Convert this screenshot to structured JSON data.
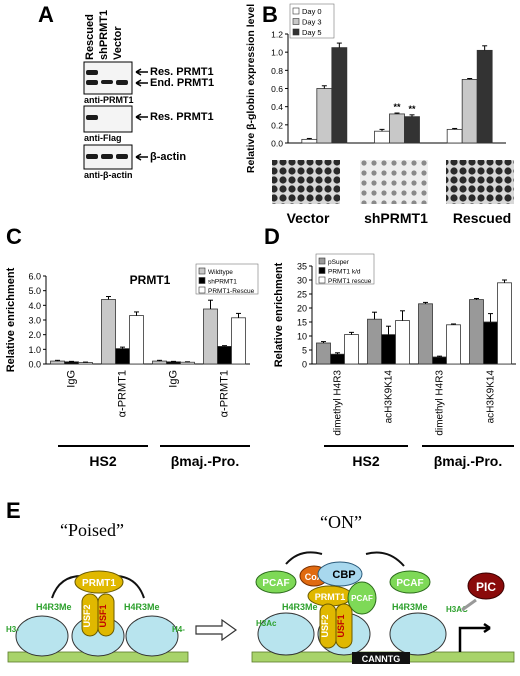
{
  "panels": {
    "A": {
      "label": "A",
      "lanes": [
        "Rescued",
        "shPRMT1",
        "Vector"
      ],
      "blot1": {
        "right_labels": [
          "Res. PRMT1",
          "End. PRMT1"
        ],
        "antibody": "anti-PRMT1"
      },
      "blot2": {
        "right_labels": [
          "Res. PRMT1"
        ],
        "antibody": "anti-Flag"
      },
      "blot3": {
        "right_labels": [
          "β-actin"
        ],
        "antibody": "anti-β-actin"
      }
    },
    "B": {
      "label": "B",
      "ylabel": "Relative β-globin expression level",
      "annotations": [
        "**",
        "**"
      ],
      "group_labels": [
        "Vector",
        "shPRMT1",
        "Rescued"
      ]
    },
    "C": {
      "label": "C",
      "title": "PRMT1",
      "ylabel": "Relative enrichment",
      "bracket_labels": [
        "HS2",
        "βmaj.-Pro."
      ]
    },
    "D": {
      "label": "D",
      "ylabel": "Relative enrichment",
      "bracket_labels": [
        "HS2",
        "βmaj.-Pro."
      ]
    },
    "E": {
      "label": "E",
      "poised_title": "“Poised”",
      "on_title": "“ON”",
      "labels": {
        "prmt1": "PRMT1",
        "usf2": "USF2",
        "usf1": "USF1",
        "h4r3me": "H4R3Me",
        "h3": "H3-",
        "h4ac_left": "H4-",
        "pcaf": "PCAF",
        "coa": "CoA",
        "cbp": "CBP",
        "h3ac": "H3Ac",
        "h2ac": "H3AC",
        "pic": "PIC",
        "canntg": "CANNTG"
      }
    }
  },
  "chart_data": [
    {
      "type": "bar",
      "panel": "B",
      "categories": [
        "Vector",
        "shPRMT1",
        "Rescued"
      ],
      "series": [
        {
          "name": "Day 0",
          "values": [
            0.04,
            0.13,
            0.15
          ],
          "color": "#ffffff"
        },
        {
          "name": "Day 3",
          "values": [
            0.6,
            0.32,
            0.7
          ],
          "color": "#c8c8c8"
        },
        {
          "name": "Day 5",
          "values": [
            1.05,
            0.29,
            1.02
          ],
          "color": "#333333"
        }
      ],
      "errors": [
        [
          0.01,
          0.02,
          0.01
        ],
        [
          0.03,
          0.01,
          0.01
        ],
        [
          0.05,
          0.02,
          0.05
        ]
      ],
      "ylabel": "Relative β-globin expression level",
      "ylim": [
        0,
        1.2
      ],
      "yticks": [
        "0.0",
        "0.2",
        "0.4",
        "0.6",
        "0.8",
        "1.0",
        "1.2"
      ],
      "legend": "top-left"
    },
    {
      "type": "bar",
      "panel": "C",
      "title": "PRMT1",
      "categories": [
        "IgG",
        "α-PRMT1",
        "IgG",
        "α-PRMT1"
      ],
      "series": [
        {
          "name": "Wildtype",
          "values": [
            0.2,
            4.4,
            0.2,
            3.75
          ],
          "color": "#c8c8c8"
        },
        {
          "name": "shPRMT1",
          "values": [
            0.15,
            1.05,
            0.15,
            1.2
          ],
          "color": "#000000"
        },
        {
          "name": "PRMT1-Rescue",
          "values": [
            0.1,
            3.3,
            0.12,
            3.15
          ],
          "color": "#ffffff"
        }
      ],
      "errors": [
        [
          0.05,
          0.2,
          0.05,
          0.6
        ],
        [
          0.03,
          0.1,
          0.03,
          0.05
        ],
        [
          0.03,
          0.25,
          0.03,
          0.3
        ]
      ],
      "ylabel": "Relative enrichment",
      "ylim": [
        0,
        6
      ],
      "yticks": [
        "0.0",
        "1.0",
        "2.0",
        "3.0",
        "4.0",
        "5.0",
        "6.0"
      ],
      "legend": "top-right"
    },
    {
      "type": "bar",
      "panel": "D",
      "categories": [
        "dimethyl H4R3",
        "acH3K9K14",
        "dimethyl H4R3",
        "acH3K9K14"
      ],
      "series": [
        {
          "name": "pSuper",
          "values": [
            7.5,
            16,
            21.5,
            23
          ],
          "color": "#999999"
        },
        {
          "name": "PRMT1 k/d",
          "values": [
            3.5,
            10.5,
            2.5,
            15
          ],
          "color": "#000000"
        },
        {
          "name": "PRMT1 rescue",
          "values": [
            10.5,
            15.5,
            14,
            29
          ],
          "color": "#ffffff"
        }
      ],
      "errors": [
        [
          0.5,
          2.5,
          0.5,
          0.4
        ],
        [
          0.5,
          3,
          0.3,
          3
        ],
        [
          0.8,
          3.5,
          0.3,
          1
        ]
      ],
      "ylabel": "Relative enrichment",
      "ylim": [
        0,
        35
      ],
      "yticks": [
        "0",
        "5",
        "10",
        "15",
        "20",
        "25",
        "30",
        "35"
      ],
      "legend": "top-left"
    }
  ]
}
